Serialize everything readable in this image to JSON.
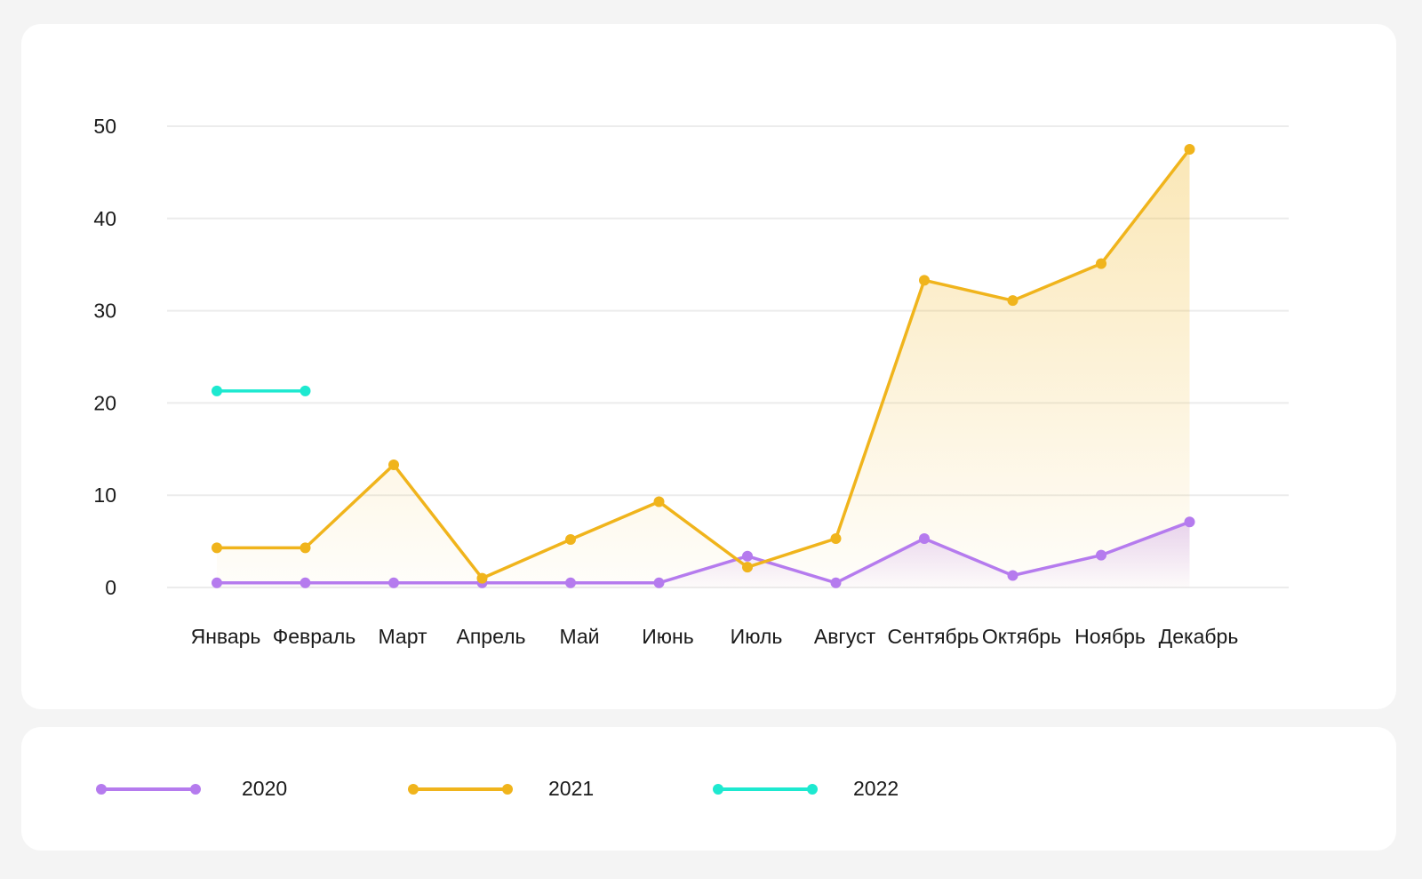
{
  "chart_data": {
    "type": "line",
    "categories": [
      "Январь",
      "Февраль",
      "Март",
      "Апрель",
      "Май",
      "Июнь",
      "Июль",
      "Август",
      "Сентябрь",
      "Октябрь",
      "Ноябрь",
      "Декабрь"
    ],
    "yticks": [
      "0",
      "10",
      "20",
      "30",
      "40",
      "50"
    ],
    "ylim": [
      0,
      50
    ],
    "grid": true,
    "legend_position": "bottom",
    "series": [
      {
        "name": "2020",
        "color": "#b57bee",
        "area": true,
        "values": [
          0.5,
          0.5,
          0.5,
          0.5,
          0.5,
          0.5,
          3.4,
          0.5,
          5.3,
          1.3,
          3.5,
          7.1
        ]
      },
      {
        "name": "2021",
        "color": "#f0b41c",
        "area": true,
        "values": [
          4.3,
          4.3,
          13.3,
          1.0,
          5.2,
          9.3,
          2.2,
          5.3,
          33.3,
          31.1,
          35.1,
          47.5
        ]
      },
      {
        "name": "2022",
        "color": "#1de9d0",
        "area": false,
        "values": [
          21.3,
          21.3,
          null,
          null,
          null,
          null,
          null,
          null,
          null,
          null,
          null,
          null
        ]
      }
    ]
  }
}
